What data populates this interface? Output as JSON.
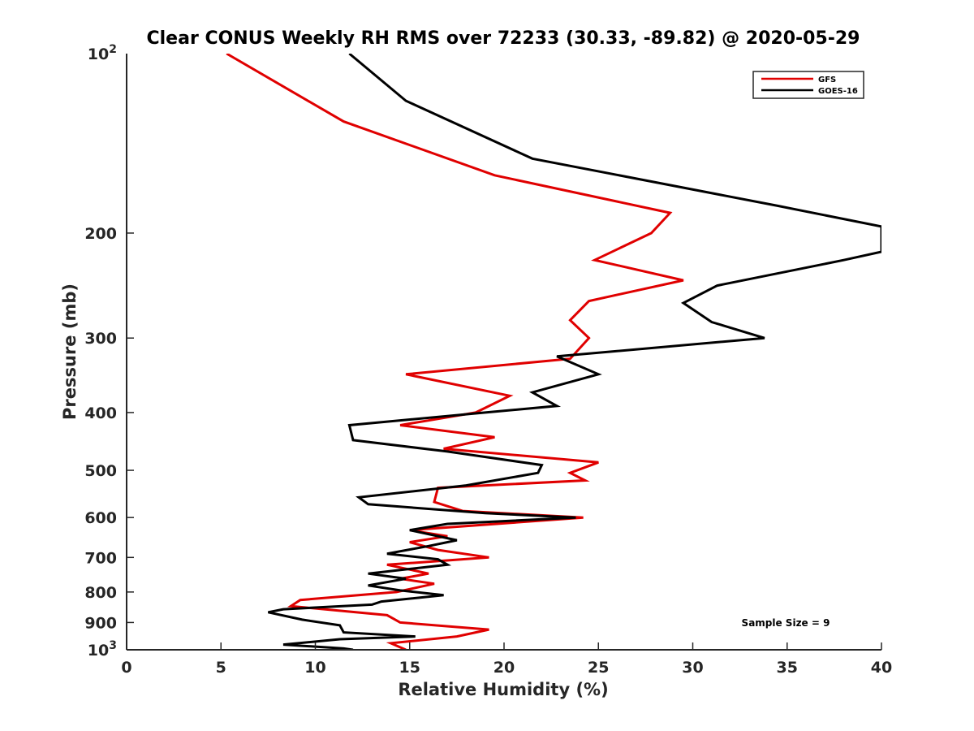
{
  "chart_data": {
    "type": "line",
    "title": "Clear CONUS Weekly RH RMS over 72233 (30.33, -89.82) @ 2020-05-29",
    "xlabel": "Relative Humidity (%)",
    "ylabel": "Pressure (mb)",
    "xlim": [
      0,
      40
    ],
    "ylim": [
      100,
      1000
    ],
    "yscale": "log",
    "yreversed": true,
    "xticks": [
      0,
      5,
      10,
      15,
      20,
      25,
      30,
      35,
      40
    ],
    "xtick_labels": [
      "0",
      "5",
      "10",
      "15",
      "20",
      "25",
      "30",
      "35",
      "40"
    ],
    "yticks": [
      100,
      200,
      300,
      400,
      500,
      600,
      700,
      800,
      900,
      1000
    ],
    "ytick_labels": [
      {
        "base": "10",
        "exp": "2"
      },
      {
        "base": "200"
      },
      {
        "base": "300"
      },
      {
        "base": "400"
      },
      {
        "base": "500"
      },
      {
        "base": "600"
      },
      {
        "base": "700"
      },
      {
        "base": "800"
      },
      {
        "base": "900"
      },
      {
        "base": "10",
        "exp": "3"
      }
    ],
    "annotation": "Sample Size = 9",
    "legend_position": "top-right",
    "series": [
      {
        "name": "GFS",
        "color": "#e00000",
        "x": [
          5.3,
          11.5,
          19.5,
          28.8,
          27.8,
          24.8,
          29.5,
          24.5,
          23.5,
          24.5,
          23.5,
          14.8,
          20.3,
          18.5,
          14.5,
          19.5,
          16.8,
          25.0,
          23.5,
          24.3,
          16.5,
          16.3,
          17.8,
          24.2,
          15.0,
          17.0,
          15.0,
          16.5,
          19.2,
          13.8,
          16.0,
          14.5,
          16.3,
          14.3,
          9.2,
          8.7,
          13.8,
          14.5,
          19.2,
          17.5,
          14.0,
          14.8
        ],
        "y": [
          100,
          130,
          160,
          185,
          200,
          222,
          240,
          260,
          280,
          300,
          325,
          345,
          375,
          400,
          420,
          440,
          460,
          485,
          505,
          520,
          535,
          565,
          585,
          600,
          630,
          645,
          660,
          680,
          700,
          720,
          745,
          760,
          775,
          800,
          825,
          845,
          875,
          900,
          925,
          950,
          975,
          1000
        ]
      },
      {
        "name": "GOES-16",
        "color": "#000000",
        "x": [
          11.8,
          14.8,
          21.5,
          34.5,
          40.0,
          40.0,
          38.0,
          31.3,
          29.5,
          31.0,
          33.8,
          22.8,
          25.0,
          21.5,
          22.8,
          19.0,
          11.8,
          12.0,
          17.0,
          22.0,
          21.8,
          18.0,
          12.3,
          12.8,
          19.0,
          23.8,
          17.0,
          15.0,
          17.5,
          16.0,
          13.8,
          16.5,
          17.0,
          12.8,
          14.8,
          12.8,
          14.5,
          16.8,
          13.5,
          13.0,
          8.3,
          7.5,
          9.3,
          11.3,
          11.5,
          15.3,
          11.3,
          8.3,
          11.5,
          12.0
        ],
        "y": [
          100,
          120,
          150,
          180,
          195,
          215,
          222,
          245,
          262,
          282,
          300,
          322,
          345,
          370,
          390,
          400,
          420,
          445,
          465,
          490,
          505,
          530,
          555,
          570,
          590,
          600,
          615,
          630,
          655,
          670,
          690,
          705,
          720,
          745,
          760,
          780,
          795,
          810,
          830,
          840,
          855,
          865,
          890,
          910,
          935,
          950,
          960,
          980,
          995,
          1000
        ]
      }
    ]
  }
}
